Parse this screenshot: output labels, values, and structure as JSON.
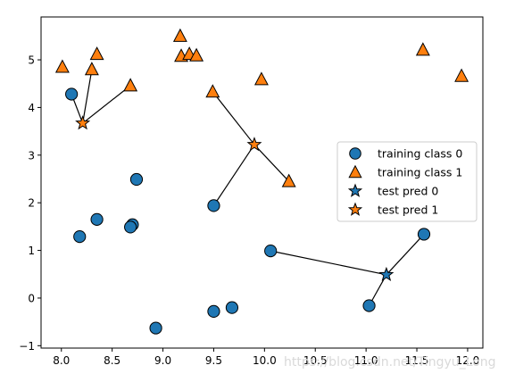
{
  "chart_data": {
    "type": "scatter",
    "title": "",
    "xlabel": "",
    "ylabel": "",
    "xlim": [
      7.8,
      12.15
    ],
    "ylim": [
      -1.05,
      5.9
    ],
    "x_ticks": [
      8.0,
      8.5,
      9.0,
      9.5,
      10.0,
      10.5,
      11.0,
      11.5,
      12.0
    ],
    "x_tick_labels": [
      "8.0",
      "8.5",
      "9.0",
      "9.5",
      "10.0",
      "10.5",
      "11.0",
      "11.5",
      "12.0"
    ],
    "y_ticks": [
      -1,
      0,
      1,
      2,
      3,
      4,
      5
    ],
    "y_tick_labels": [
      "−1",
      "0",
      "1",
      "2",
      "3",
      "4",
      "5"
    ],
    "grid": false,
    "legend_position": "right",
    "colors": {
      "class0": "#1f77b4",
      "class1": "#ff7f0e"
    },
    "series": [
      {
        "name": "training class 0",
        "marker": "circle",
        "color": "#1f77b4",
        "points": [
          [
            8.1,
            4.28
          ],
          [
            8.18,
            1.29
          ],
          [
            8.35,
            1.65
          ],
          [
            8.7,
            1.54
          ],
          [
            8.68,
            1.49
          ],
          [
            8.74,
            2.49
          ],
          [
            8.93,
            -0.63
          ],
          [
            9.5,
            1.94
          ],
          [
            9.5,
            -0.28
          ],
          [
            9.68,
            -0.2
          ],
          [
            10.06,
            0.99
          ],
          [
            11.03,
            -0.16
          ],
          [
            11.57,
            1.34
          ]
        ]
      },
      {
        "name": "training class 1",
        "marker": "triangle",
        "color": "#ff7f0e",
        "points": [
          [
            8.01,
            4.85
          ],
          [
            8.3,
            4.8
          ],
          [
            8.35,
            5.12
          ],
          [
            8.68,
            4.46
          ],
          [
            9.17,
            5.5
          ],
          [
            9.18,
            5.08
          ],
          [
            9.26,
            5.12
          ],
          [
            9.33,
            5.09
          ],
          [
            9.49,
            4.33
          ],
          [
            9.97,
            4.59
          ],
          [
            10.24,
            2.45
          ],
          [
            11.56,
            5.21
          ],
          [
            11.94,
            4.66
          ]
        ]
      },
      {
        "name": "test pred 0",
        "marker": "star",
        "color": "#1f77b4",
        "points": [
          [
            11.2,
            0.49
          ]
        ]
      },
      {
        "name": "test pred 1",
        "marker": "star",
        "color": "#ff7f0e",
        "points": [
          [
            8.21,
            3.67
          ],
          [
            9.9,
            3.22
          ]
        ]
      }
    ],
    "neighbor_lines": [
      {
        "from": [
          8.21,
          3.67
        ],
        "to": [
          8.1,
          4.28
        ]
      },
      {
        "from": [
          8.21,
          3.67
        ],
        "to": [
          8.3,
          4.8
        ]
      },
      {
        "from": [
          8.21,
          3.67
        ],
        "to": [
          8.68,
          4.46
        ]
      },
      {
        "from": [
          9.9,
          3.22
        ],
        "to": [
          9.49,
          4.33
        ]
      },
      {
        "from": [
          9.9,
          3.22
        ],
        "to": [
          10.24,
          2.45
        ]
      },
      {
        "from": [
          9.9,
          3.22
        ],
        "to": [
          9.5,
          1.94
        ]
      },
      {
        "from": [
          11.2,
          0.49
        ],
        "to": [
          10.06,
          0.99
        ]
      },
      {
        "from": [
          11.2,
          0.49
        ],
        "to": [
          11.03,
          -0.16
        ]
      },
      {
        "from": [
          11.2,
          0.49
        ],
        "to": [
          11.57,
          1.34
        ]
      }
    ],
    "legend": [
      "training class 0",
      "training class 1",
      "test pred 0",
      "test pred 1"
    ]
  },
  "watermark": "https://blog.csdn.net/Tingyu_Long"
}
